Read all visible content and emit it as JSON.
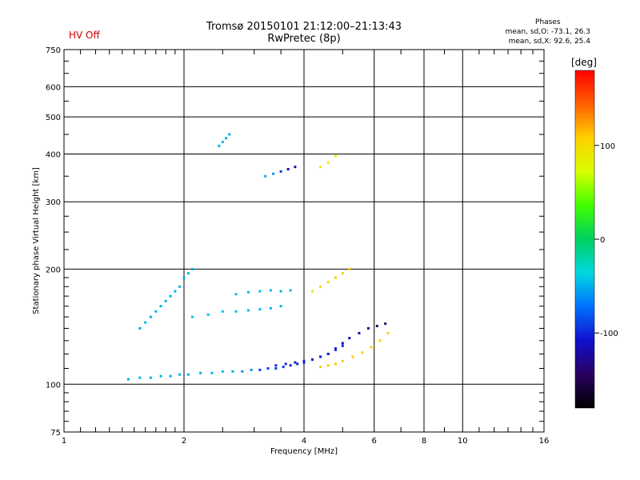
{
  "hv_status": "HV Off",
  "chart_data": {
    "type": "scatter",
    "title": "Tromsø 20150101 21:12:00–21:13:43",
    "subtitle": "RwPretec (8p)",
    "xlabel": "Frequency [MHz]",
    "ylabel": "Stationary phase Virtual Height [km]",
    "x_scale": "log",
    "y_scale": "log",
    "xlim": [
      1,
      16
    ],
    "ylim": [
      75,
      750
    ],
    "x_ticks": [
      1,
      2,
      4,
      6,
      8,
      10,
      16
    ],
    "y_ticks": [
      75,
      100,
      200,
      300,
      400,
      500,
      600,
      750
    ],
    "grid": true,
    "colorbar": {
      "label": "[deg]",
      "ticks": [
        100,
        0,
        -100
      ],
      "range": [
        -180,
        180
      ],
      "colors": [
        "#000000",
        "#2a0060",
        "#1010cc",
        "#0070ff",
        "#00d8e0",
        "#00d060",
        "#40ff00",
        "#d8ff00",
        "#ffd000",
        "#ff6000",
        "#ff0000"
      ]
    },
    "stats": {
      "heading": "Phases",
      "line_o": "mean, sd,O:  -73.1, 26.3",
      "line_x": "mean, sd,X:  92.6, 25.4"
    },
    "series": [
      {
        "x": [
          1.45,
          1.55,
          1.65,
          1.75,
          1.85,
          1.95,
          2.05,
          2.2,
          2.35,
          2.5,
          2.65,
          2.8,
          2.95,
          3.1,
          3.25,
          3.4,
          3.55,
          3.7,
          3.85,
          4.0,
          4.2,
          4.4,
          4.6,
          4.8,
          5.0
        ],
        "y": [
          103,
          104,
          104,
          105,
          105,
          106,
          106,
          107,
          107,
          108,
          108,
          108,
          109,
          109,
          110,
          110,
          111,
          112,
          113,
          114,
          116,
          118,
          120,
          123,
          126
        ],
        "phase": [
          -50,
          -50,
          -50,
          -50,
          -50,
          -50,
          -50,
          -50,
          -50,
          -50,
          -50,
          -60,
          -60,
          -90,
          -90,
          -90,
          -90,
          -100,
          -100,
          -100,
          -100,
          -100,
          -100,
          -100,
          -100
        ]
      },
      {
        "x": [
          3.4,
          3.6,
          3.8,
          4.0,
          4.2,
          4.4,
          4.6,
          4.8,
          5.0,
          5.2,
          5.5,
          5.8,
          6.1,
          6.4
        ],
        "y": [
          112,
          113,
          114,
          115,
          116,
          118,
          120,
          124,
          128,
          132,
          136,
          140,
          142,
          144
        ],
        "phase": [
          -100,
          -100,
          -100,
          -100,
          -100,
          -100,
          -100,
          -100,
          -110,
          -110,
          -120,
          -130,
          -140,
          -140
        ]
      },
      {
        "x": [
          4.4,
          4.6,
          4.8,
          5.0,
          5.3,
          5.6,
          5.9,
          6.2,
          6.5
        ],
        "y": [
          111,
          112,
          113,
          115,
          118,
          121,
          125,
          130,
          136
        ],
        "phase": [
          110,
          110,
          110,
          110,
          110,
          110,
          110,
          110,
          110
        ]
      },
      {
        "x": [
          1.55,
          1.6,
          1.65,
          1.7,
          1.75,
          1.8,
          1.85,
          1.9,
          1.95,
          2.0,
          2.05,
          2.1
        ],
        "y": [
          140,
          145,
          150,
          155,
          160,
          165,
          170,
          175,
          180,
          190,
          195,
          200
        ],
        "phase": [
          -50,
          -50,
          -50,
          -50,
          -50,
          -50,
          -50,
          -50,
          -50,
          -50,
          -50,
          -50
        ]
      },
      {
        "x": [
          2.1,
          2.3,
          2.5,
          2.7,
          2.9,
          3.1,
          3.3,
          3.5
        ],
        "y": [
          150,
          152,
          155,
          155,
          156,
          157,
          158,
          160
        ],
        "phase": [
          -45,
          -45,
          -45,
          -45,
          -45,
          -50,
          -50,
          -50
        ]
      },
      {
        "x": [
          2.7,
          2.9,
          3.1,
          3.3,
          3.5,
          3.7
        ],
        "y": [
          172,
          174,
          175,
          176,
          175,
          176
        ],
        "phase": [
          -45,
          -45,
          -45,
          -45,
          -50,
          -50
        ]
      },
      {
        "x": [
          3.2,
          3.35,
          3.5,
          3.65,
          3.8
        ],
        "y": [
          350,
          355,
          360,
          365,
          370
        ],
        "phase": [
          -50,
          -60,
          -90,
          -110,
          -120
        ]
      },
      {
        "x": [
          2.45,
          2.5,
          2.55,
          2.6
        ],
        "y": [
          420,
          430,
          440,
          450
        ],
        "phase": [
          -50,
          -50,
          -50,
          -50
        ]
      },
      {
        "x": [
          4.4,
          4.6,
          4.8
        ],
        "y": [
          370,
          380,
          395
        ],
        "phase": [
          90,
          90,
          90
        ]
      },
      {
        "x": [
          4.2,
          4.4,
          4.6,
          4.8,
          5.0,
          5.2
        ],
        "y": [
          175,
          180,
          185,
          190,
          195,
          200
        ],
        "phase": [
          90,
          100,
          100,
          110,
          110,
          110
        ]
      }
    ]
  }
}
